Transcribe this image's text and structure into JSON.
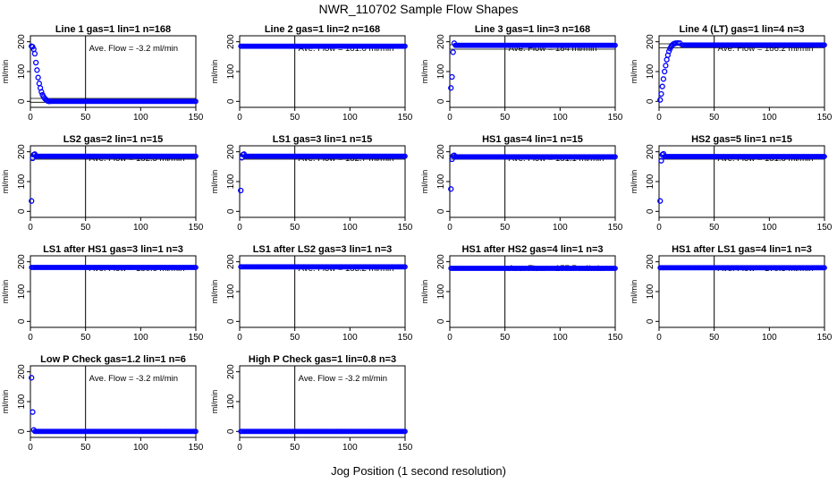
{
  "figure": {
    "title": "NWR_110702  Sample Flow Shapes",
    "xlabel": "Jog Position (1 second resolution)"
  },
  "chart_data": [
    {
      "type": "scatter",
      "title": "Line 1 gas=1 lin=1 n=168",
      "ylabel": "ml/min",
      "annotation": "Ave. Flow =  -3.2  ml/min",
      "xlim": [
        0,
        150
      ],
      "ylim": [
        -20,
        220
      ],
      "xticks": [
        0,
        50,
        100,
        150
      ],
      "yticks": [
        0,
        100,
        200
      ],
      "hlines": [
        10,
        -3
      ],
      "vline": 50,
      "points": [
        [
          1,
          185
        ],
        [
          2,
          183
        ],
        [
          3,
          175
        ],
        [
          4,
          160
        ],
        [
          5,
          130
        ],
        [
          6,
          105
        ],
        [
          7,
          80
        ],
        [
          8,
          60
        ],
        [
          9,
          45
        ],
        [
          10,
          32
        ],
        [
          11,
          22
        ],
        [
          12,
          15
        ],
        [
          13,
          10
        ],
        [
          14,
          6
        ],
        [
          15,
          3
        ],
        [
          16,
          1
        ],
        [
          17,
          0
        ]
      ],
      "plateau": {
        "from": 18,
        "to": 150,
        "value": 0
      }
    },
    {
      "type": "scatter",
      "title": "Line 2 gas=1 lin=2 n=168",
      "ylabel": "ml/min",
      "annotation": "Ave. Flow =  181.6  ml/min",
      "xlim": [
        0,
        150
      ],
      "ylim": [
        -20,
        220
      ],
      "xticks": [
        0,
        50,
        100,
        150
      ],
      "yticks": [
        0,
        100,
        200
      ],
      "hlines": [
        188,
        178
      ],
      "vline": 50,
      "points": [],
      "plateau": {
        "from": 1,
        "to": 150,
        "value": 185
      }
    },
    {
      "type": "scatter",
      "title": "Line 3 gas=1 lin=3 n=168",
      "ylabel": "ml/min",
      "annotation": "Ave. Flow =  184  ml/min",
      "xlim": [
        0,
        150
      ],
      "ylim": [
        -20,
        220
      ],
      "xticks": [
        0,
        50,
        100,
        150
      ],
      "yticks": [
        0,
        100,
        200
      ],
      "hlines": [
        190,
        175
      ],
      "vline": 50,
      "points": [
        [
          1,
          45
        ],
        [
          2,
          82
        ],
        [
          3,
          165
        ],
        [
          4,
          195
        ]
      ],
      "plateau": {
        "from": 5,
        "to": 150,
        "value": 188
      }
    },
    {
      "type": "scatter",
      "title": "Line 4 (LT) gas=1 lin=4 n=3",
      "ylabel": "ml/min",
      "annotation": "Ave. Flow =  186.2  ml/min",
      "xlim": [
        0,
        150
      ],
      "ylim": [
        -20,
        220
      ],
      "xticks": [
        0,
        50,
        100,
        150
      ],
      "yticks": [
        0,
        100,
        200
      ],
      "hlines": [
        193,
        180
      ],
      "vline": 50,
      "points": [
        [
          1,
          5
        ],
        [
          2,
          25
        ],
        [
          3,
          50
        ],
        [
          4,
          75
        ],
        [
          5,
          100
        ],
        [
          6,
          120
        ],
        [
          7,
          140
        ],
        [
          8,
          155
        ],
        [
          9,
          168
        ],
        [
          10,
          177
        ],
        [
          11,
          184
        ],
        [
          12,
          189
        ],
        [
          13,
          192
        ],
        [
          14,
          194
        ],
        [
          15,
          195
        ],
        [
          17,
          196
        ],
        [
          19,
          195
        ]
      ],
      "plateau": {
        "from": 21,
        "to": 150,
        "value": 189
      }
    },
    {
      "type": "scatter",
      "title": "LS2 gas=2 lin=1 n=15",
      "ylabel": "ml/min",
      "annotation": "Ave. Flow =  182.5  ml/min",
      "xlim": [
        0,
        150
      ],
      "ylim": [
        -20,
        220
      ],
      "xticks": [
        0,
        50,
        100,
        150
      ],
      "yticks": [
        0,
        100,
        200
      ],
      "hlines": [
        190,
        175
      ],
      "vline": 50,
      "points": [
        [
          1,
          35
        ],
        [
          2,
          178
        ],
        [
          3,
          190
        ],
        [
          4,
          192
        ]
      ],
      "plateau": {
        "from": 5,
        "to": 150,
        "value": 185
      }
    },
    {
      "type": "scatter",
      "title": "LS1 gas=3 lin=1 n=15",
      "ylabel": "ml/min",
      "annotation": "Ave. Flow =  182.7  ml/min",
      "xlim": [
        0,
        150
      ],
      "ylim": [
        -20,
        220
      ],
      "xticks": [
        0,
        50,
        100,
        150
      ],
      "yticks": [
        0,
        100,
        200
      ],
      "hlines": [
        190,
        175
      ],
      "vline": 50,
      "points": [
        [
          1,
          70
        ],
        [
          2,
          180
        ],
        [
          3,
          190
        ],
        [
          4,
          192
        ]
      ],
      "plateau": {
        "from": 5,
        "to": 150,
        "value": 185
      }
    },
    {
      "type": "scatter",
      "title": "HS1 gas=4 lin=1 n=15",
      "ylabel": "ml/min",
      "annotation": "Ave. Flow =  181.1  ml/min",
      "xlim": [
        0,
        150
      ],
      "ylim": [
        -20,
        220
      ],
      "xticks": [
        0,
        50,
        100,
        150
      ],
      "yticks": [
        0,
        100,
        200
      ],
      "hlines": [
        188,
        175
      ],
      "vline": 50,
      "points": [
        [
          1,
          75
        ],
        [
          2,
          175
        ],
        [
          3,
          186
        ],
        [
          4,
          188
        ]
      ],
      "plateau": {
        "from": 5,
        "to": 150,
        "value": 183
      }
    },
    {
      "type": "scatter",
      "title": "HS2 gas=5 lin=1 n=15",
      "ylabel": "ml/min",
      "annotation": "Ave. Flow =  181.8  ml/min",
      "xlim": [
        0,
        150
      ],
      "ylim": [
        -20,
        220
      ],
      "xticks": [
        0,
        50,
        100,
        150
      ],
      "yticks": [
        0,
        100,
        200
      ],
      "hlines": [
        188,
        175
      ],
      "vline": 50,
      "points": [
        [
          1,
          35
        ],
        [
          2,
          170
        ],
        [
          3,
          190
        ],
        [
          4,
          193
        ]
      ],
      "plateau": {
        "from": 5,
        "to": 150,
        "value": 184
      }
    },
    {
      "type": "scatter",
      "title": "LS1 after HS1 gas=3 lin=1 n=3",
      "ylabel": "ml/min",
      "annotation": "Ave. Flow =  180.6  ml/min",
      "xlim": [
        0,
        150
      ],
      "ylim": [
        -20,
        220
      ],
      "xticks": [
        0,
        50,
        100,
        150
      ],
      "yticks": [
        0,
        100,
        200
      ],
      "hlines": [
        186,
        176
      ],
      "vline": 50,
      "points": [],
      "plateau": {
        "from": 1,
        "to": 150,
        "value": 181
      }
    },
    {
      "type": "scatter",
      "title": "LS1 after LS2 gas=3 lin=1 n=3",
      "ylabel": "ml/min",
      "annotation": "Ave. Flow =  183.2  ml/min",
      "xlim": [
        0,
        150
      ],
      "ylim": [
        -20,
        220
      ],
      "xticks": [
        0,
        50,
        100,
        150
      ],
      "yticks": [
        0,
        100,
        200
      ],
      "hlines": [
        188,
        178
      ],
      "vline": 50,
      "points": [],
      "plateau": {
        "from": 1,
        "to": 150,
        "value": 183
      }
    },
    {
      "type": "scatter",
      "title": "HS1 after HS2 gas=4 lin=1 n=3",
      "ylabel": "ml/min",
      "annotation": "Ave. Flow =  177.7  ml/min",
      "xlim": [
        0,
        150
      ],
      "ylim": [
        -20,
        220
      ],
      "xticks": [
        0,
        50,
        100,
        150
      ],
      "yticks": [
        0,
        100,
        200
      ],
      "hlines": [
        182,
        173
      ],
      "vline": 50,
      "points": [],
      "plateau": {
        "from": 1,
        "to": 150,
        "value": 178
      }
    },
    {
      "type": "scatter",
      "title": "HS1 after LS1 gas=4 lin=1 n=3",
      "ylabel": "ml/min",
      "annotation": "Ave. Flow =  179.3  ml/min",
      "xlim": [
        0,
        150
      ],
      "ylim": [
        -20,
        220
      ],
      "xticks": [
        0,
        50,
        100,
        150
      ],
      "yticks": [
        0,
        100,
        200
      ],
      "hlines": [
        184,
        175
      ],
      "vline": 50,
      "points": [],
      "plateau": {
        "from": 1,
        "to": 150,
        "value": 180
      }
    },
    {
      "type": "scatter",
      "title": "Low P Check gas=1.2 lin=1 n=6",
      "ylabel": "ml/min",
      "annotation": "Ave. Flow =  -3.2  ml/min",
      "xlim": [
        0,
        150
      ],
      "ylim": [
        -20,
        220
      ],
      "xticks": [
        0,
        50,
        100,
        150
      ],
      "yticks": [
        0,
        100,
        200
      ],
      "hlines": [],
      "vline": 50,
      "points": [
        [
          1,
          180
        ],
        [
          2,
          65
        ],
        [
          3,
          5
        ]
      ],
      "plateau": {
        "from": 4,
        "to": 150,
        "value": 0
      }
    },
    {
      "type": "scatter",
      "title": "High P Check gas=1 lin=0.8 n=3",
      "ylabel": "ml/min",
      "annotation": "Ave. Flow =  -3.2  ml/min",
      "xlim": [
        0,
        150
      ],
      "ylim": [
        -20,
        220
      ],
      "xticks": [
        0,
        50,
        100,
        150
      ],
      "yticks": [
        0,
        100,
        200
      ],
      "hlines": [],
      "vline": 50,
      "points": [],
      "plateau": {
        "from": 1,
        "to": 150,
        "value": 0
      }
    }
  ]
}
